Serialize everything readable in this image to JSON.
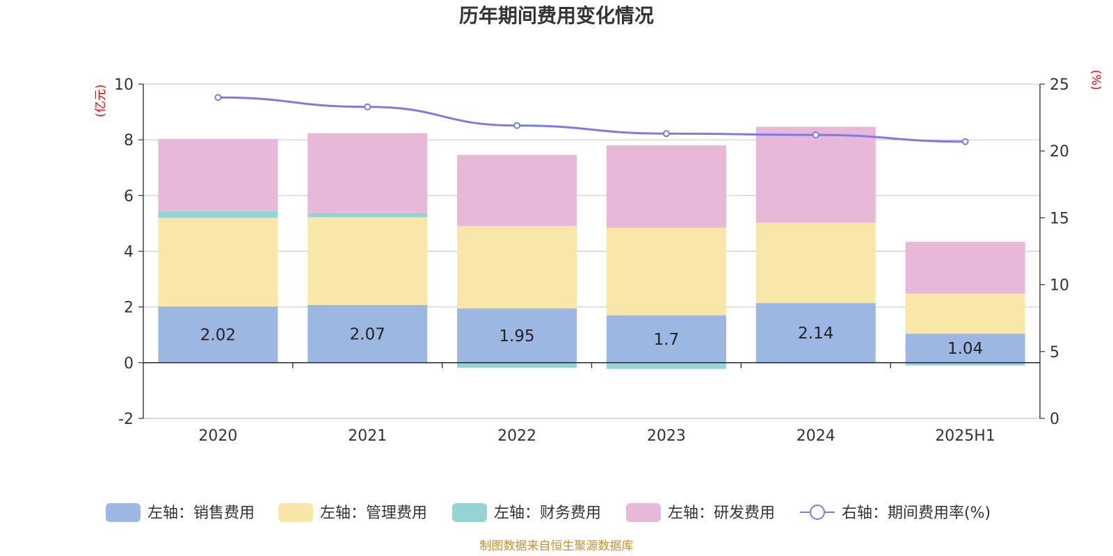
{
  "chart_data": {
    "type": "bar",
    "title": "历年期间费用变化情况",
    "categories": [
      "2020",
      "2021",
      "2022",
      "2023",
      "2024",
      "2025H1"
    ],
    "left_axis": {
      "unit": "(亿元)",
      "ylim": [
        -2,
        10
      ],
      "ticks": [
        -2,
        0,
        2,
        4,
        6,
        8,
        10
      ]
    },
    "right_axis": {
      "unit": "(%)",
      "ylim": [
        0,
        25
      ],
      "ticks": [
        0,
        5,
        10,
        15,
        20,
        25
      ]
    },
    "series": [
      {
        "name": "左轴：销售费用",
        "axis": "left",
        "stack": "cost",
        "color": "#9cb8e2",
        "values": [
          2.02,
          2.07,
          1.95,
          1.7,
          2.14,
          1.04
        ],
        "labels": [
          "2.02",
          "2.07",
          "1.95",
          "1.7",
          "2.14",
          "1.04"
        ]
      },
      {
        "name": "左轴：管理费用",
        "axis": "left",
        "stack": "cost",
        "color": "#f8e7a8",
        "values": [
          3.18,
          3.15,
          2.96,
          3.14,
          2.88,
          1.44
        ]
      },
      {
        "name": "左轴：财务费用",
        "axis": "left",
        "stack": "cost",
        "color": "#96d3d4",
        "values": [
          0.24,
          0.15,
          -0.18,
          -0.22,
          -0.02,
          -0.1
        ]
      },
      {
        "name": "左轴：研发费用",
        "axis": "left",
        "stack": "cost",
        "color": "#e8b8d8",
        "values": [
          2.59,
          2.87,
          2.55,
          2.96,
          3.45,
          1.86
        ]
      },
      {
        "name": "右轴：期间费用率(%)",
        "axis": "right",
        "type": "line",
        "color": "#7b7be8",
        "values": [
          24.0,
          23.3,
          21.9,
          21.3,
          21.2,
          20.7
        ]
      }
    ],
    "grid": true,
    "legend_position": "bottom"
  },
  "footer": {
    "source": "制图数据来自恒生聚源数据库"
  }
}
